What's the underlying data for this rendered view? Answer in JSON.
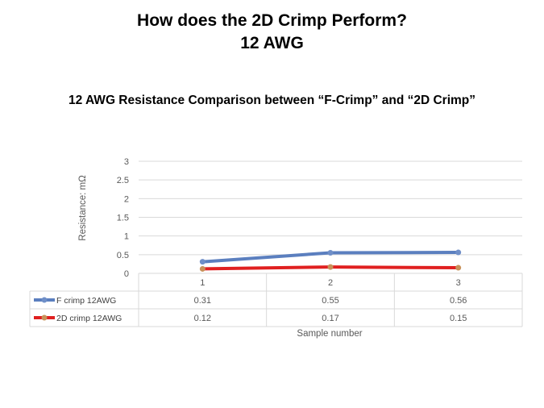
{
  "slide": {
    "title_line1": "How does the 2D Crimp Perform?",
    "title_line2": "12 AWG"
  },
  "chart_data": {
    "type": "line",
    "title": "12 AWG Resistance Comparison between “F-Crimp” and “2D Crimp”",
    "xlabel": "Sample number",
    "ylabel": "Resistance: mΩ",
    "categories": [
      "1",
      "2",
      "3"
    ],
    "ylim": [
      0,
      3
    ],
    "yticks": [
      "0",
      "0.5",
      "1",
      "1.5",
      "2",
      "2.5",
      "3"
    ],
    "grid": true,
    "legend": "data-table",
    "series": [
      {
        "name": "F crimp 12AWG",
        "values": [
          0.31,
          0.55,
          0.56
        ],
        "value_labels": [
          "0.31",
          "0.55",
          "0.56"
        ],
        "color": "#5b7fbf",
        "marker_color": "#6f8fc8"
      },
      {
        "name": "2D crimp 12AWG",
        "values": [
          0.12,
          0.17,
          0.15
        ],
        "value_labels": [
          "0.12",
          "0.17",
          "0.15"
        ],
        "color": "#e02020",
        "marker_color": "#c8925a"
      }
    ]
  }
}
